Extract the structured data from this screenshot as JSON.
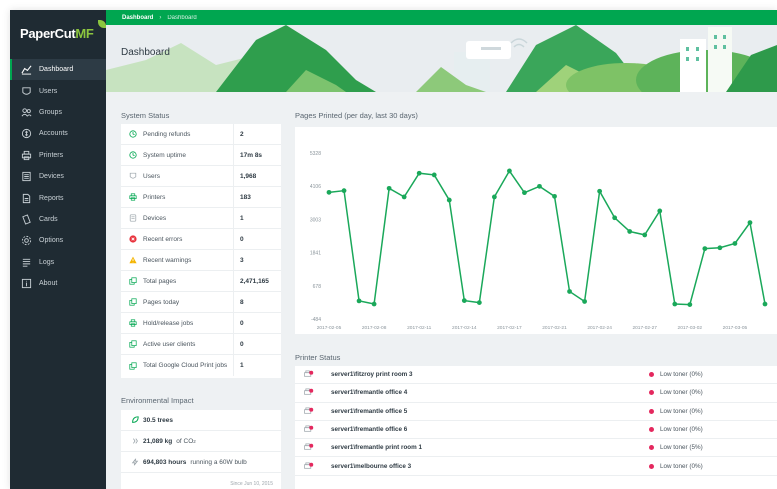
{
  "app": {
    "logo_main": "PaperCut",
    "logo_accent": "MF"
  },
  "colors": {
    "brand_green": "#00a650",
    "sidebar_bg": "#1f2b33",
    "chart_line": "#1aa85a",
    "error_red": "#e8323c",
    "warning_amber": "#f4b400",
    "low_toner_pink": "#e4285e"
  },
  "sidebar": {
    "items": [
      {
        "label": "Dashboard",
        "icon": "chart-icon",
        "active": true
      },
      {
        "label": "Users",
        "icon": "user-icon"
      },
      {
        "label": "Groups",
        "icon": "groups-icon"
      },
      {
        "label": "Accounts",
        "icon": "accounts-icon"
      },
      {
        "label": "Printers",
        "icon": "printer-icon"
      },
      {
        "label": "Devices",
        "icon": "device-icon"
      },
      {
        "label": "Reports",
        "icon": "reports-icon"
      },
      {
        "label": "Cards",
        "icon": "cards-icon"
      },
      {
        "label": "Options",
        "icon": "gear-icon"
      },
      {
        "label": "Logs",
        "icon": "logs-icon"
      },
      {
        "label": "About",
        "icon": "about-icon"
      }
    ]
  },
  "breadcrumb": {
    "root": "Dashboard",
    "current": "Dashboard"
  },
  "page_title": "Dashboard",
  "system_status": {
    "title": "System Status",
    "rows": [
      {
        "label": "Pending refunds",
        "value": "2",
        "icon": "clock-icon"
      },
      {
        "label": "System uptime",
        "value": "17m 8s",
        "icon": "clock-icon"
      },
      {
        "label": "Users",
        "value": "1,968",
        "icon": "user-icon"
      },
      {
        "label": "Printers",
        "value": "183",
        "icon": "printer-icon"
      },
      {
        "label": "Devices",
        "value": "1",
        "icon": "device-icon"
      },
      {
        "label": "Recent errors",
        "value": "0",
        "icon": "error-icon"
      },
      {
        "label": "Recent warnings",
        "value": "3",
        "icon": "warning-icon"
      },
      {
        "label": "Total pages",
        "value": "2,471,165",
        "icon": "pages-icon"
      },
      {
        "label": "Pages today",
        "value": "8",
        "icon": "pages-icon"
      },
      {
        "label": "Hold/release jobs",
        "value": "0",
        "icon": "print-job-icon"
      },
      {
        "label": "Active user clients",
        "value": "0",
        "icon": "pages-icon"
      },
      {
        "label": "Total Google Cloud Print jobs",
        "value": "1",
        "icon": "pages-icon"
      }
    ]
  },
  "environmental_impact": {
    "title": "Environmental Impact",
    "trees_value": "30.5 trees",
    "co2_value": "21,089 kg",
    "co2_text_prefix": "of CO",
    "co2_subscript": "2",
    "energy_value": "694,803 hours",
    "energy_text": "running a 60W bulb",
    "footer": "Since Jun 10, 2015"
  },
  "pages_printed": {
    "title": "Pages Printed (per day, last 30 days)"
  },
  "chart_data": {
    "type": "line",
    "title": "Pages Printed (per day, last 30 days)",
    "y_ticks": [
      "5328",
      "4106",
      "3003",
      "1841",
      "678",
      "-484"
    ],
    "ylim": [
      -484,
      5328
    ],
    "x_tick_labels": [
      "2017-02-05",
      "2017-02-08",
      "2017-02-11",
      "2017-02-14",
      "2017-02-17",
      "2017-02-21",
      "2017-02-24",
      "2017-02-27",
      "2017-03-02",
      "2017-03-05"
    ],
    "x_tick_index": [
      0,
      3,
      6,
      9,
      12,
      15,
      18,
      21,
      24,
      27
    ],
    "grid": false,
    "series": [
      {
        "values": [
          3950,
          4010,
          150,
          40,
          4090,
          3790,
          4620,
          4560,
          3680,
          160,
          90,
          3790,
          4700,
          3940,
          4160,
          3810,
          480,
          130,
          3990,
          3060,
          2580,
          2460,
          3300,
          40,
          20,
          1980,
          2010,
          2160,
          2890,
          40
        ]
      }
    ]
  },
  "printer_status": {
    "title": "Printer Status",
    "rows": [
      {
        "name": "server1\\fitzroy print room 3",
        "status": "Low toner (0%)"
      },
      {
        "name": "server1\\fremantle office 4",
        "status": "Low toner (0%)"
      },
      {
        "name": "server1\\fremantle office 5",
        "status": "Low toner (0%)"
      },
      {
        "name": "server1\\fremantle office 6",
        "status": "Low toner (0%)"
      },
      {
        "name": "server1\\fremantle print room 1",
        "status": "Low toner (5%)"
      },
      {
        "name": "server1\\melbourne office 3",
        "status": "Low toner (0%)"
      }
    ]
  }
}
